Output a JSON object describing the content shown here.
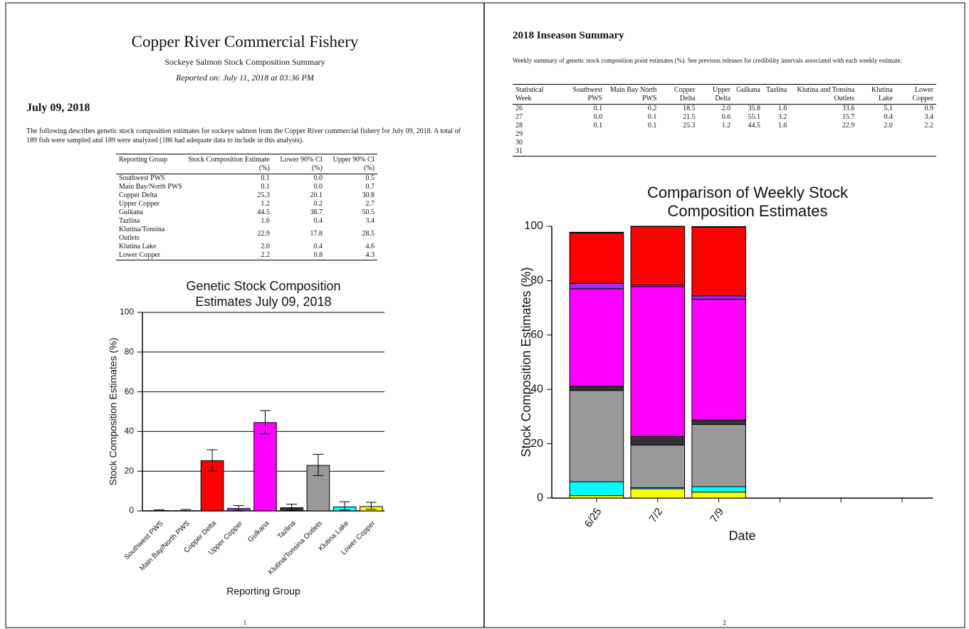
{
  "header": {
    "title": "Copper River Commercial Fishery",
    "subtitle": "Sockeye Salmon Stock Composition Summary",
    "reported": "Reported on: July 11, 2018 at 03:36 PM"
  },
  "section": {
    "heading": "July 09, 2018",
    "text": "The following describes genetic stock composition estimates for sockeye salmon from the Copper River commercial fishery for July 09, 2018. A total of 189 fish were sampled and 189 were analyzed (186 had adequate data to include in this analysis)."
  },
  "table1": {
    "header": [
      "Reporting Group",
      "Stock Composition Estimate (%)",
      "Lower 90% CI (%)",
      "Upper 90% CI (%)"
    ],
    "rows": [
      [
        "Southwest PWS",
        "0.1",
        "0.0",
        "0.5"
      ],
      [
        "Main Bay/North PWS",
        "0.1",
        "0.0",
        "0.7"
      ],
      [
        "Copper Delta",
        "25.3",
        "20.1",
        "30.8"
      ],
      [
        "Upper Copper",
        "1.2",
        "0.2",
        "2.7"
      ],
      [
        "Gulkana",
        "44.5",
        "38.7",
        "50.5"
      ],
      [
        "Tazlina",
        "1.6",
        "0.4",
        "3.4"
      ],
      [
        "Klutina/Tonsina Outlets",
        "22.9",
        "17.8",
        "28.5"
      ],
      [
        "Klutina Lake",
        "2.0",
        "0.4",
        "4.6"
      ],
      [
        "Lower Copper",
        "2.2",
        "0.8",
        "4.3"
      ]
    ]
  },
  "summary": {
    "heading": "2018 Inseason Summary",
    "text": "Weekly summary of genetic stock composition point estimates (%). See previous releases for credibility intervals associated with each weekly estimate."
  },
  "table2": {
    "header": [
      "Statistical Week",
      "Southwest PWS",
      "Main Bay North PWS",
      "Copper Delta",
      "Upper Delta",
      "Gulkana",
      "Tazlina",
      "Klutina and Tonsina Outlets",
      "Klutina Lake",
      "Lower Copper"
    ],
    "rows": [
      [
        "26",
        "0.1",
        "0.2",
        "18.5",
        "2.0",
        "35.8",
        "1.6",
        "33.6",
        "5.1",
        "0.9"
      ],
      [
        "27",
        "0.0",
        "0.1",
        "21.5",
        "0.6",
        "55.1",
        "3.2",
        "15.7",
        "0.4",
        "3.4"
      ],
      [
        "28",
        "0.1",
        "0.1",
        "25.3",
        "1.2",
        "44.5",
        "1.6",
        "22.9",
        "2.0",
        "2.2"
      ],
      [
        "29"
      ],
      [
        "30"
      ],
      [
        "31"
      ]
    ]
  },
  "page_numbers": [
    "1",
    "2"
  ],
  "chart_data": [
    {
      "type": "bar",
      "title": "Genetic Stock Composition Estimates July 09, 2018",
      "x_label": "Reporting Group",
      "y_label": "Stock Composition Estimates (%)",
      "categories": [
        "Southwest PWS",
        "Main Bay/North PWS",
        "Copper Delta",
        "Upper Copper",
        "Gulkana",
        "Tazlina",
        "Klutina/Tonsina Outlets",
        "Klutina Lake",
        "Lower Copper"
      ],
      "values": [
        0.1,
        0.1,
        25.3,
        1.2,
        44.5,
        1.6,
        22.9,
        2.0,
        2.2
      ],
      "lower": [
        0.0,
        0.0,
        20.1,
        0.2,
        38.7,
        0.4,
        17.8,
        0.4,
        0.8
      ],
      "upper": [
        0.5,
        0.7,
        30.8,
        2.7,
        50.5,
        3.4,
        28.5,
        4.6,
        4.3
      ],
      "colors": [
        "#000000",
        "#555555",
        "#ff0000",
        "#9b30ff",
        "#ff00ff",
        "#333333",
        "#999999",
        "#00ffff",
        "#ffff00"
      ],
      "ylim": [
        0,
        100
      ],
      "yticks": [
        0,
        20,
        40,
        60,
        80,
        100
      ],
      "grid": true
    },
    {
      "type": "stacked_bar",
      "title": "Comparison of Weekly Stock Composition Estimates",
      "x_label": "Date",
      "y_label": "Stock Composition Estimates (%)",
      "categories": [
        "6/25",
        "7/2",
        "7/9",
        null,
        null,
        null
      ],
      "series": [
        {
          "color": "#ffff00",
          "values": [
            0.9,
            3.4,
            2.2,
            null,
            null,
            null
          ]
        },
        {
          "color": "#00ffff",
          "values": [
            5.1,
            0.4,
            2.0,
            null,
            null,
            null
          ]
        },
        {
          "color": "#999999",
          "values": [
            33.6,
            15.7,
            22.9,
            null,
            null,
            null
          ]
        },
        {
          "color": "#333333",
          "values": [
            1.6,
            3.2,
            1.6,
            null,
            null,
            null
          ]
        },
        {
          "color": "#ff00ff",
          "values": [
            35.8,
            55.1,
            44.5,
            null,
            null,
            null
          ]
        },
        {
          "color": "#9b30ff",
          "values": [
            2.0,
            0.6,
            1.2,
            null,
            null,
            null
          ]
        },
        {
          "color": "#ff0000",
          "values": [
            18.5,
            21.5,
            25.3,
            null,
            null,
            null
          ]
        },
        {
          "color": "#555555",
          "values": [
            0.2,
            0.1,
            0.1,
            null,
            null,
            null
          ]
        },
        {
          "color": "#000000",
          "values": [
            0.1,
            0.0,
            0.1,
            null,
            null,
            null
          ]
        }
      ],
      "ylim": [
        0,
        100
      ],
      "yticks": [
        0,
        20,
        40,
        60,
        80,
        100
      ],
      "grid": false
    }
  ]
}
